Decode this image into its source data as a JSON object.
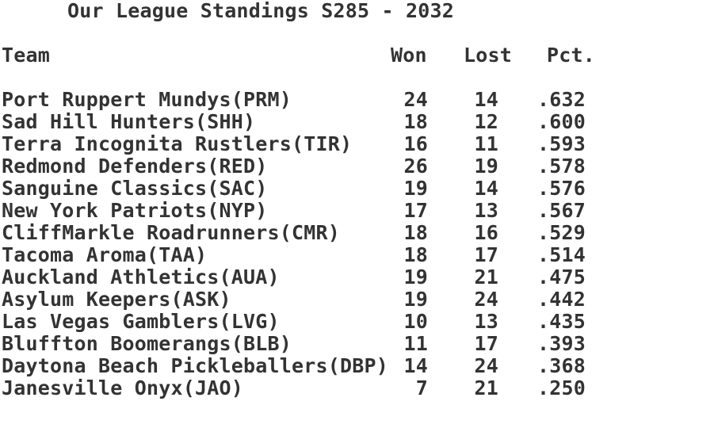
{
  "title": "Our League Standings S285 - 2032",
  "table": {
    "headers": {
      "team": "Team",
      "won": "Won",
      "lost": "Lost",
      "pct": "Pct."
    },
    "rows": [
      {
        "team": "Port Ruppert Mundys(PRM)",
        "won": "24",
        "lost": "14",
        "pct": ".632"
      },
      {
        "team": "Sad Hill Hunters(SHH)",
        "won": "18",
        "lost": "12",
        "pct": ".600"
      },
      {
        "team": "Terra Incognita Rustlers(TIR)",
        "won": "16",
        "lost": "11",
        "pct": ".593"
      },
      {
        "team": "Redmond Defenders(RED)",
        "won": "26",
        "lost": "19",
        "pct": ".578"
      },
      {
        "team": "Sanguine Classics(SAC)",
        "won": "19",
        "lost": "14",
        "pct": ".576"
      },
      {
        "team": "New York Patriots(NYP)",
        "won": "17",
        "lost": "13",
        "pct": ".567"
      },
      {
        "team": "CliffMarkle Roadrunners(CMR)",
        "won": "18",
        "lost": "16",
        "pct": ".529"
      },
      {
        "team": "Tacoma Aroma(TAA)",
        "won": "18",
        "lost": "17",
        "pct": ".514"
      },
      {
        "team": "Auckland Athletics(AUA)",
        "won": "19",
        "lost": "21",
        "pct": ".475"
      },
      {
        "team": "Asylum Keepers(ASK)",
        "won": "19",
        "lost": "24",
        "pct": ".442"
      },
      {
        "team": "Las Vegas Gamblers(LVG)",
        "won": "10",
        "lost": "13",
        "pct": ".435"
      },
      {
        "team": "Bluffton Boomerangs(BLB)",
        "won": "11",
        "lost": "17",
        "pct": ".393"
      },
      {
        "team": "Daytona Beach Pickleballers(DBP)",
        "won": "14",
        "lost": "24",
        "pct": ".368"
      },
      {
        "team": "Janesville Onyx(JAO)",
        "won": "7",
        "lost": "21",
        "pct": ".250"
      }
    ]
  },
  "colors": {
    "text": "#333333",
    "background": "#ffffff"
  }
}
